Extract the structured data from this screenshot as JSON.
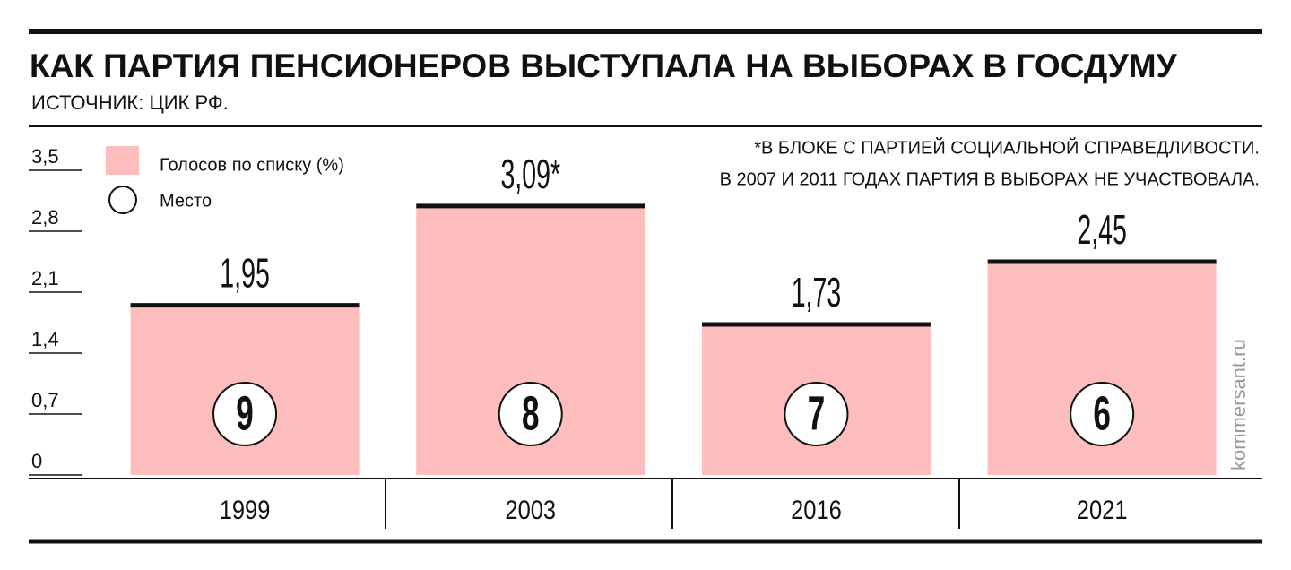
{
  "chart_data": {
    "type": "bar",
    "title": "КАК ПАРТИЯ ПЕНСИОНЕРОВ ВЫСТУПАЛА НА ВЫБОРАХ В ГОСДУМУ",
    "subtitle": "ИСТОЧНИК: ЦИК РФ.",
    "note": [
      "*В БЛОКЕ С ПАРТИЕЙ СОЦИАЛЬНОЙ СПРАВЕДЛИВОСТИ.",
      "В 2007 И 2011 ГОДАХ ПАРТИЯ В ВЫБОРАХ НЕ УЧАСТВОВАЛА."
    ],
    "watermark": "kommersant.ru",
    "categories": [
      "1999",
      "2003",
      "2016",
      "2021"
    ],
    "series": [
      {
        "name": "Голосов по списку (%)",
        "color": "#fdbdbd",
        "values": [
          1.95,
          3.09,
          1.73,
          2.45
        ],
        "value_labels": [
          "1,95",
          "3,09*",
          "1,73",
          "2,45"
        ]
      },
      {
        "name": "Место",
        "values": [
          9,
          8,
          7,
          6
        ]
      }
    ],
    "ylim": [
      0,
      3.5
    ],
    "yticks": [
      0,
      {
        "value": 0.7,
        "label": "0,7"
      },
      {
        "value": 1.4,
        "label": "1,4"
      },
      {
        "value": 2.1,
        "label": "2,1"
      },
      {
        "value": 2.8,
        "label": "2,8"
      },
      {
        "value": 3.5,
        "label": "3,5"
      }
    ]
  }
}
